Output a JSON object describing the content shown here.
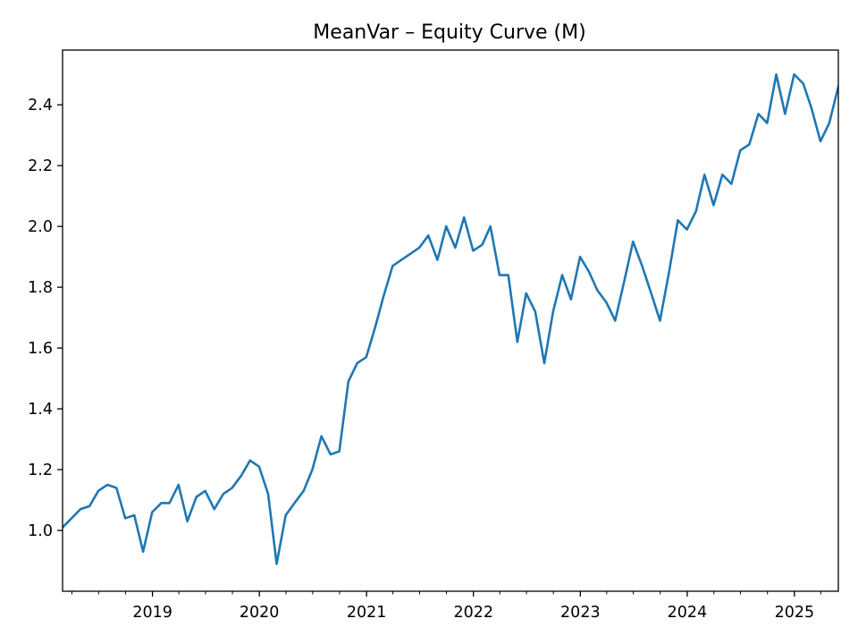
{
  "chart_data": {
    "type": "line",
    "title": "MeanVar – Equity Curve (M)",
    "xlabel": "",
    "ylabel": "",
    "x_type": "date",
    "xlim": [
      "2018-02-28",
      "2025-05-31"
    ],
    "ylim": [
      0.8,
      2.58
    ],
    "grid": false,
    "legend": "none",
    "colors": {
      "line": "#1f77b4"
    },
    "y_ticks": [
      1.0,
      1.2,
      1.4,
      1.6,
      1.8,
      2.0,
      2.2,
      2.4
    ],
    "y_tick_labels": [
      "1.0",
      "1.2",
      "1.4",
      "1.6",
      "1.8",
      "2.0",
      "2.2",
      "2.4"
    ],
    "x_ticks": [
      "2019-01-01",
      "2020-01-01",
      "2021-01-01",
      "2022-01-01",
      "2023-01-01",
      "2024-01-01",
      "2025-01-01"
    ],
    "x_tick_labels": [
      "2019",
      "2020",
      "2021",
      "2022",
      "2023",
      "2024",
      "2025"
    ],
    "series": [
      {
        "x": [
          "2018-02-28",
          "2018-03-31",
          "2018-04-30",
          "2018-05-31",
          "2018-06-30",
          "2018-07-31",
          "2018-08-31",
          "2018-09-30",
          "2018-10-31",
          "2018-11-30",
          "2018-12-31",
          "2019-01-31",
          "2019-02-28",
          "2019-03-31",
          "2019-04-30",
          "2019-05-31",
          "2019-06-30",
          "2019-07-31",
          "2019-08-31",
          "2019-09-30",
          "2019-10-31",
          "2019-11-30",
          "2019-12-31",
          "2020-01-31",
          "2020-02-29",
          "2020-03-31",
          "2020-04-30",
          "2020-05-31",
          "2020-06-30",
          "2020-07-31",
          "2020-08-31",
          "2020-09-30",
          "2020-10-31",
          "2020-11-30",
          "2020-12-31",
          "2021-01-31",
          "2021-02-28",
          "2021-03-31",
          "2021-04-30",
          "2021-05-31",
          "2021-06-30",
          "2021-07-31",
          "2021-08-31",
          "2021-09-30",
          "2021-10-31",
          "2021-11-30",
          "2021-12-31",
          "2022-01-31",
          "2022-02-28",
          "2022-03-31",
          "2022-04-30",
          "2022-05-31",
          "2022-06-30",
          "2022-07-31",
          "2022-08-31",
          "2022-09-30",
          "2022-10-31",
          "2022-11-30",
          "2022-12-31",
          "2023-01-31",
          "2023-02-28",
          "2023-03-31",
          "2023-04-30",
          "2023-05-31",
          "2023-06-30",
          "2023-07-31",
          "2023-08-31",
          "2023-09-30",
          "2023-10-31",
          "2023-11-30",
          "2023-12-31",
          "2024-01-31",
          "2024-02-29",
          "2024-03-31",
          "2024-04-30",
          "2024-05-31",
          "2024-06-30",
          "2024-07-31",
          "2024-08-31",
          "2024-09-30",
          "2024-10-31",
          "2024-11-30",
          "2024-12-31",
          "2025-01-31",
          "2025-02-28",
          "2025-03-31",
          "2025-04-30",
          "2025-05-31"
        ],
        "values": [
          1.01,
          1.04,
          1.07,
          1.08,
          1.13,
          1.15,
          1.14,
          1.04,
          1.05,
          0.93,
          1.06,
          1.09,
          1.09,
          1.15,
          1.03,
          1.11,
          1.13,
          1.07,
          1.12,
          1.14,
          1.18,
          1.23,
          1.21,
          1.12,
          0.89,
          1.05,
          1.09,
          1.13,
          1.2,
          1.31,
          1.25,
          1.26,
          1.49,
          1.55,
          1.57,
          1.67,
          1.77,
          1.87,
          1.89,
          1.91,
          1.93,
          1.97,
          1.89,
          2.0,
          1.93,
          2.03,
          1.92,
          1.94,
          2.0,
          1.84,
          1.84,
          1.62,
          1.78,
          1.72,
          1.55,
          1.72,
          1.84,
          1.76,
          1.9,
          1.85,
          1.79,
          1.75,
          1.69,
          1.82,
          1.95,
          1.87,
          1.78,
          1.69,
          1.85,
          2.02,
          1.99,
          2.05,
          2.17,
          2.07,
          2.17,
          2.14,
          2.25,
          2.27,
          2.37,
          2.34,
          2.5,
          2.37,
          2.5,
          2.47,
          2.39,
          2.28,
          2.34,
          2.46
        ]
      }
    ]
  }
}
